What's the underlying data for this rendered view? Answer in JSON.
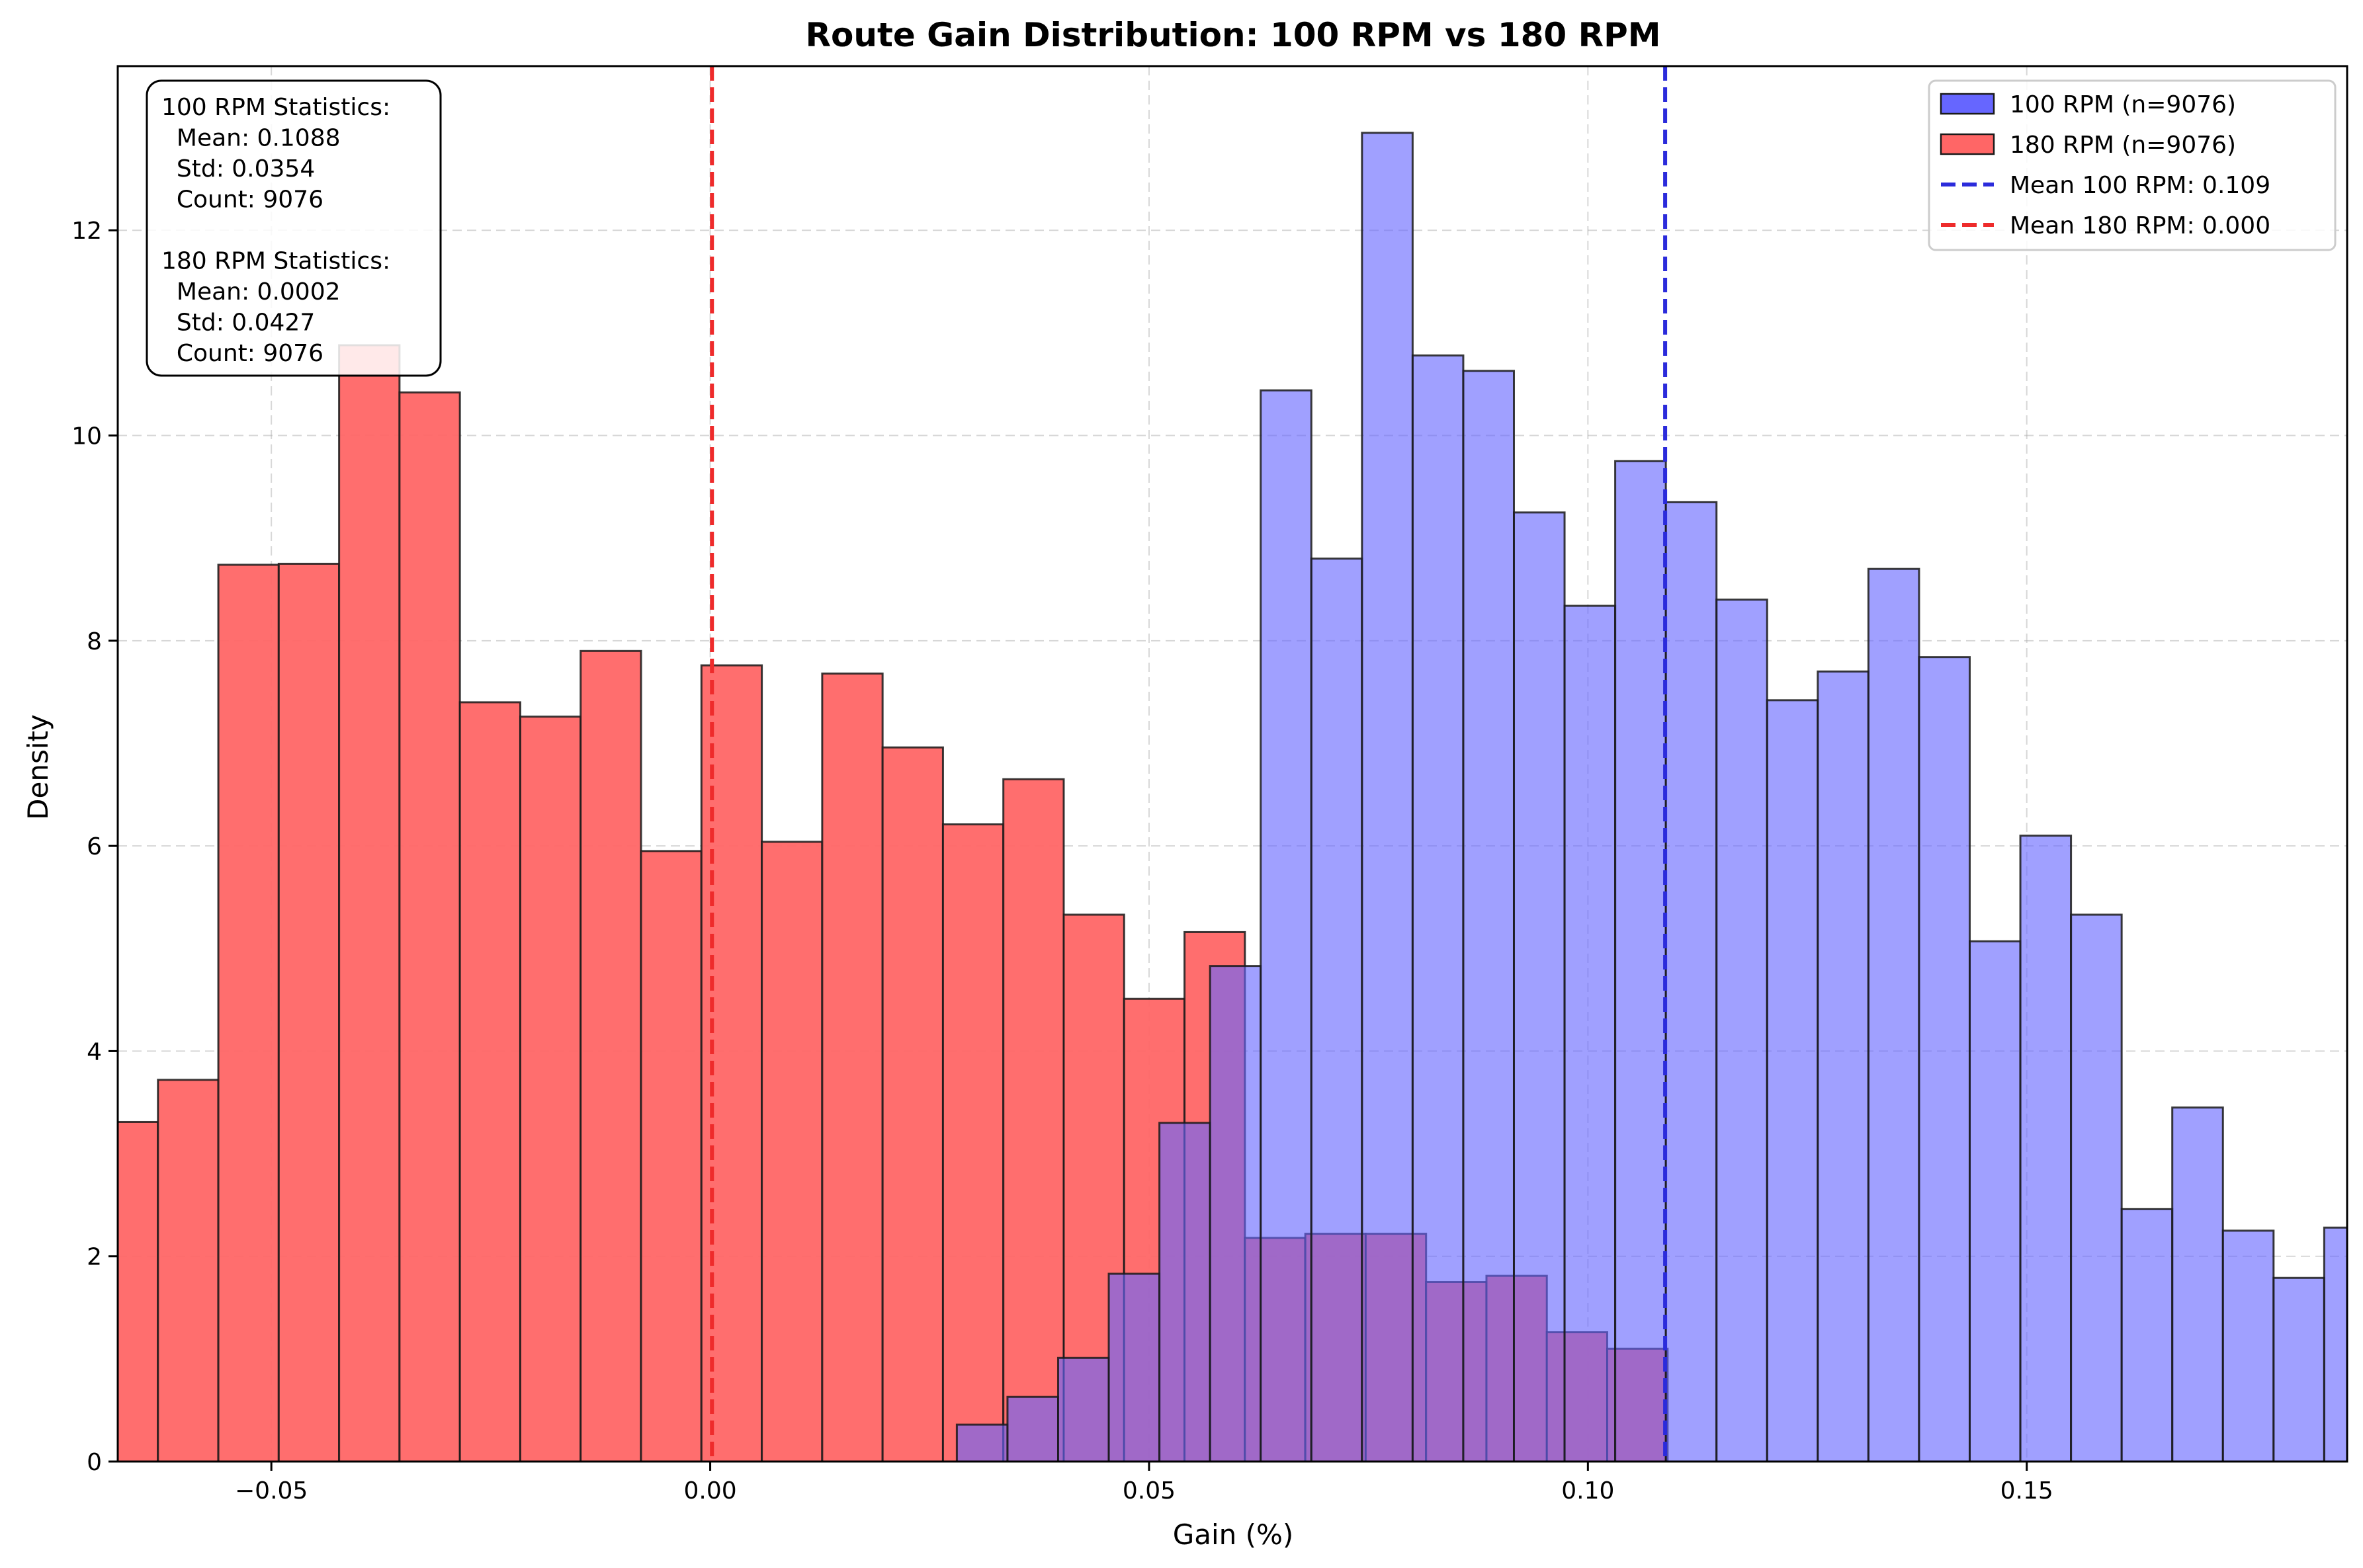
{
  "chart_data": {
    "type": "bar",
    "title": "Route Gain Distribution: 100 RPM vs 180 RPM",
    "xlabel": "Gain (%)",
    "ylabel": "Density",
    "xlim": [
      -0.0675,
      0.1865
    ],
    "ylim": [
      0,
      13.6
    ],
    "x_ticks": [
      -0.05,
      0.0,
      0.05,
      0.1,
      0.15
    ],
    "x_tick_labels": [
      "−0.05",
      "0.00",
      "0.05",
      "0.10",
      "0.15"
    ],
    "y_ticks": [
      0,
      2,
      4,
      6,
      8,
      10,
      12
    ],
    "y_tick_labels": [
      "0",
      "2",
      "4",
      "6",
      "8",
      "10",
      "12"
    ],
    "grid": true,
    "legend_position": "upper right",
    "series": [
      {
        "name": "100 RPM (n=9076)",
        "color": "#6666ff",
        "bin_start": 0.0281,
        "bin_width": 0.00577,
        "values": [
          0.36,
          0.63,
          1.01,
          1.83,
          3.3,
          4.83,
          10.44,
          8.8,
          12.95,
          10.78,
          10.63,
          9.25,
          8.34,
          9.75,
          9.35,
          8.4,
          7.42,
          7.7,
          8.7,
          7.84,
          5.07,
          6.1,
          5.33,
          2.46,
          3.45,
          2.25,
          1.79,
          2.28
        ]
      },
      {
        "name": "180 RPM (n=9076)",
        "color": "#ff6666",
        "bin_start": -0.0698,
        "bin_width": 0.00688,
        "values": [
          3.31,
          3.72,
          8.74,
          8.75,
          10.88,
          10.42,
          7.4,
          7.26,
          7.9,
          5.95,
          7.76,
          6.04,
          7.68,
          6.96,
          6.21,
          6.65,
          5.33,
          4.51,
          5.16,
          2.18,
          2.22,
          2.22,
          1.75,
          1.81,
          1.26,
          1.1
        ]
      }
    ],
    "mean_lines": [
      {
        "name": "Mean 100 RPM: 0.109",
        "x": 0.1088,
        "color": "#2b2bdb"
      },
      {
        "name": "Mean 180 RPM: 0.000",
        "x": 0.0002,
        "color": "#ee2b2b"
      }
    ],
    "stats_box": [
      "100 RPM Statistics:",
      "  Mean: 0.1088",
      "  Std: 0.0354",
      "  Count: 9076",
      "",
      "180 RPM Statistics:",
      "  Mean: 0.0002",
      "  Std: 0.0427",
      "  Count: 9076"
    ]
  }
}
